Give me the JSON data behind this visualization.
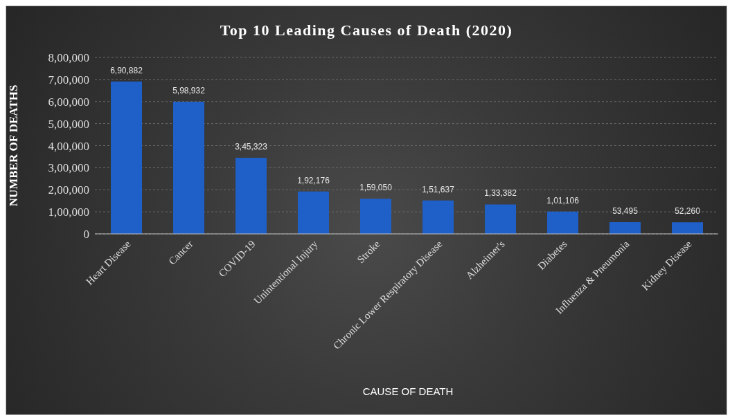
{
  "chart_data": {
    "type": "bar",
    "title": "Top 10 Leading Causes of Death (2020)",
    "xlabel": "CAUSE OF DEATH",
    "ylabel": "NUMBER OF DEATHS",
    "categories": [
      "Heart Disease",
      "Cancer",
      "COVID-19",
      "Unintentional Injury",
      "Stroke",
      "Chronic Lower Respiratory Disease",
      "Alzheimer's",
      "Diabetes",
      "Influenza & Pneumonia",
      "Kidney Disease"
    ],
    "values": [
      690882,
      598932,
      345323,
      192176,
      159050,
      151637,
      133382,
      101106,
      53495,
      52260
    ],
    "value_labels": [
      "6,90,882",
      "5,98,932",
      "3,45,323",
      "1,92,176",
      "1,59,050",
      "1,51,637",
      "1,33,382",
      "1,01,106",
      "53,495",
      "52,260"
    ],
    "color": "#1f5fc8",
    "ylim": [
      0,
      800000
    ],
    "yticks": [
      0,
      {
        "value": 100000,
        "label": "1,00,000"
      },
      {
        "value": 200000,
        "label": "2,00,000"
      },
      {
        "value": 300000,
        "label": "3,00,000"
      },
      {
        "value": 400000,
        "label": "4,00,000"
      },
      {
        "value": 500000,
        "label": "5,00,000"
      },
      {
        "value": 600000,
        "label": "6,00,000"
      },
      {
        "value": 700000,
        "label": "7,00,000"
      },
      {
        "value": 800000,
        "label": "8,00,000"
      }
    ],
    "grid": "y"
  }
}
